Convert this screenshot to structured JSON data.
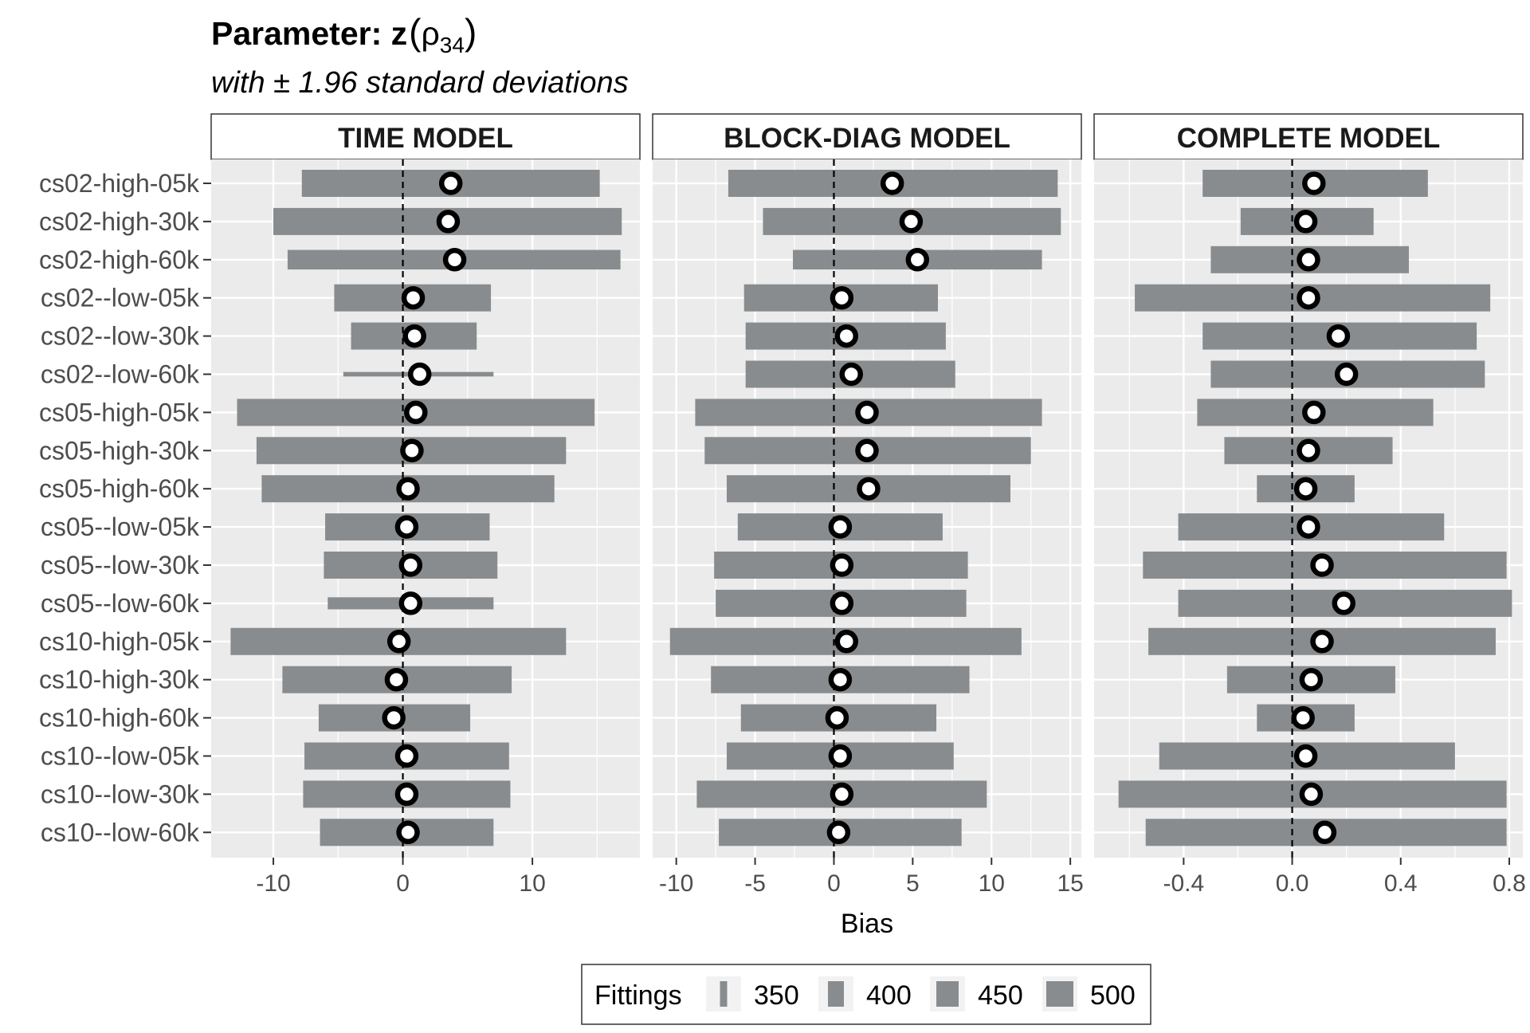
{
  "chart_data": {
    "type": "bar",
    "title_prefix": "Parameter: z",
    "title_symbol": "ρ",
    "title_subscript": "34",
    "subtitle": "with ± 1.96 standard deviations",
    "xlabel": "Bias",
    "grid": true,
    "legend": {
      "title": "Fittings",
      "placement": "bottom",
      "levels": [
        350,
        400,
        450,
        500
      ],
      "labels": [
        "350",
        "400",
        "450",
        "500"
      ]
    },
    "categories": [
      "cs02-high-05k",
      "cs02-high-30k",
      "cs02-high-60k",
      "cs02--low-05k",
      "cs02--low-30k",
      "cs02--low-60k",
      "cs05-high-05k",
      "cs05-high-30k",
      "cs05-high-60k",
      "cs05--low-05k",
      "cs05--low-30k",
      "cs05--low-60k",
      "cs10-high-05k",
      "cs10-high-30k",
      "cs10-high-60k",
      "cs10--low-05k",
      "cs10--low-30k",
      "cs10--low-60k"
    ],
    "colors": {
      "bar": "#898c8e",
      "panel_bg": "#ebebeb",
      "grid": "#ffffff",
      "point_fill": "#ffffff",
      "point_stroke": "#000000"
    },
    "panels": [
      {
        "label": "TIME MODEL",
        "xlim": [
          -14.8,
          18.3
        ],
        "ticks": [
          -10,
          0,
          10
        ],
        "tick_labels": [
          "-10",
          "0",
          "10"
        ],
        "minor_ticks": [
          -5,
          5,
          15
        ],
        "mean": [
          3.7,
          3.5,
          4.0,
          0.8,
          0.9,
          1.3,
          1.0,
          0.7,
          0.4,
          0.3,
          0.6,
          0.6,
          -0.3,
          -0.5,
          -0.7,
          0.3,
          0.3,
          0.4
        ],
        "lower": [
          -7.8,
          -10.0,
          -8.9,
          -5.3,
          -4.0,
          -4.6,
          -12.8,
          -11.3,
          -10.9,
          -6.0,
          -6.1,
          -5.8,
          -13.3,
          -9.3,
          -6.5,
          -7.6,
          -7.7,
          -6.4
        ],
        "upper": [
          15.2,
          16.9,
          16.8,
          6.8,
          5.7,
          7.0,
          14.8,
          12.6,
          11.7,
          6.7,
          7.3,
          7.0,
          12.6,
          8.4,
          5.2,
          8.2,
          8.3,
          7.0
        ],
        "fittings": [
          500,
          500,
          450,
          500,
          500,
          350,
          500,
          500,
          500,
          500,
          500,
          400,
          500,
          500,
          500,
          500,
          500,
          500
        ]
      },
      {
        "label": "BLOCK-DIAG MODEL",
        "xlim": [
          -11.5,
          15.7
        ],
        "ticks": [
          -10,
          -5,
          0,
          5,
          10,
          15
        ],
        "tick_labels": [
          "-10",
          "-5",
          "0",
          "5",
          "10",
          "15"
        ],
        "minor_ticks": [
          -7.5,
          -2.5,
          2.5,
          7.5,
          12.5
        ],
        "mean": [
          3.7,
          4.9,
          5.3,
          0.5,
          0.8,
          1.1,
          2.1,
          2.1,
          2.2,
          0.4,
          0.5,
          0.5,
          0.8,
          0.4,
          0.2,
          0.4,
          0.5,
          0.3
        ],
        "lower": [
          -6.7,
          -4.5,
          -2.6,
          -5.7,
          -5.6,
          -5.6,
          -8.8,
          -8.2,
          -6.8,
          -6.1,
          -7.6,
          -7.5,
          -10.4,
          -7.8,
          -5.9,
          -6.8,
          -8.7,
          -7.3
        ],
        "upper": [
          14.2,
          14.4,
          13.2,
          6.6,
          7.1,
          7.7,
          13.2,
          12.5,
          11.2,
          6.9,
          8.5,
          8.4,
          11.9,
          8.6,
          6.5,
          7.6,
          9.7,
          8.1
        ],
        "fittings": [
          500,
          500,
          450,
          500,
          500,
          500,
          500,
          500,
          500,
          500,
          500,
          500,
          500,
          500,
          500,
          500,
          500,
          500
        ]
      },
      {
        "label": "COMPLETE MODEL",
        "xlim": [
          -0.73,
          0.85
        ],
        "ticks": [
          -0.4,
          0.0,
          0.4,
          0.8
        ],
        "tick_labels": [
          "-0.4",
          "0.0",
          "0.4",
          "0.8"
        ],
        "minor_ticks": [
          -0.6,
          -0.2,
          0.2,
          0.6
        ],
        "mean": [
          0.08,
          0.05,
          0.06,
          0.06,
          0.17,
          0.2,
          0.08,
          0.06,
          0.05,
          0.06,
          0.11,
          0.19,
          0.11,
          0.07,
          0.04,
          0.05,
          0.07,
          0.12
        ],
        "lower": [
          -0.33,
          -0.19,
          -0.3,
          -0.58,
          -0.33,
          -0.3,
          -0.35,
          -0.25,
          -0.13,
          -0.42,
          -0.55,
          -0.42,
          -0.53,
          -0.24,
          -0.13,
          -0.49,
          -0.64,
          -0.54
        ],
        "upper": [
          0.5,
          0.3,
          0.43,
          0.73,
          0.68,
          0.71,
          0.52,
          0.37,
          0.23,
          0.56,
          0.79,
          0.81,
          0.75,
          0.38,
          0.23,
          0.6,
          0.79,
          0.79
        ],
        "fittings": [
          500,
          500,
          500,
          500,
          500,
          500,
          500,
          500,
          500,
          500,
          500,
          500,
          500,
          500,
          500,
          500,
          500,
          500
        ]
      }
    ]
  }
}
